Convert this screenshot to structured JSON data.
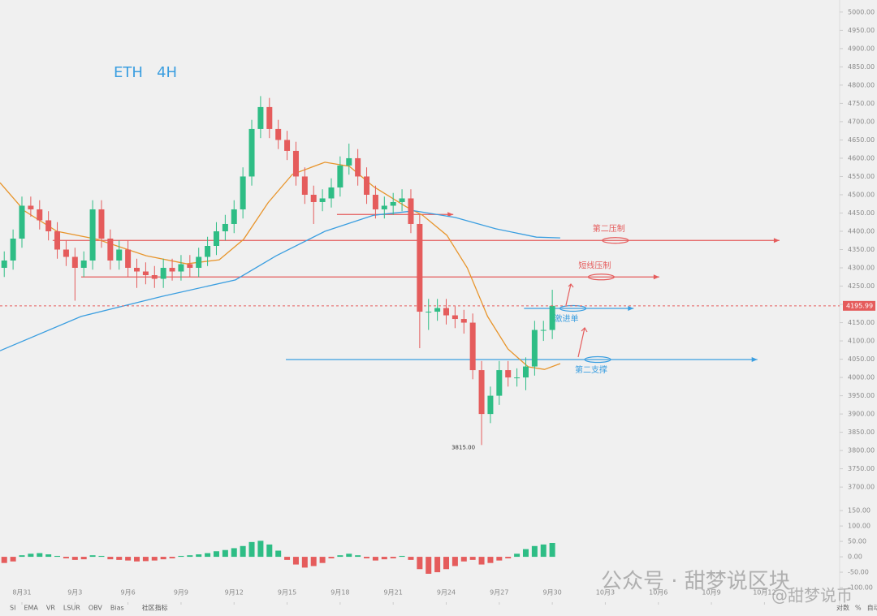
{
  "chart_data": {
    "type": "candlestick",
    "title": "ETH   4H",
    "x": [
      -1,
      -0.5,
      0,
      0.5,
      1,
      1.5,
      2,
      2.5,
      3,
      3.5,
      4,
      4.5,
      5,
      5.5,
      6,
      6.5,
      7,
      7.5,
      8,
      8.5,
      9,
      9.5,
      10,
      10.5,
      11,
      11.5,
      12,
      12.5,
      13,
      13.5,
      14,
      14.5,
      15,
      15.5,
      16,
      16.5,
      17,
      17.5,
      18,
      18.5,
      19,
      19.5,
      20,
      20.5,
      21,
      21.5,
      22,
      22.5,
      23,
      23.5,
      24,
      24.5,
      25,
      25.5,
      26,
      26.5,
      27,
      27.5,
      28,
      28.5,
      29,
      29.5,
      30
    ],
    "open": [
      4300,
      4320,
      4380,
      4470,
      4460,
      4430,
      4400,
      4350,
      4330,
      4300,
      4320,
      4460,
      4380,
      4320,
      4350,
      4300,
      4290,
      4280,
      4270,
      4300,
      4290,
      4310,
      4300,
      4330,
      4360,
      4400,
      4420,
      4460,
      4550,
      4680,
      4740,
      4680,
      4650,
      4620,
      4550,
      4500,
      4480,
      4490,
      4520,
      4580,
      4600,
      4550,
      4500,
      4460,
      4470,
      4480,
      4490,
      4420,
      4180,
      4180,
      4190,
      4170,
      4160,
      4150,
      4020,
      3900,
      3950,
      4020,
      4000,
      4000,
      4030,
      4130,
      4130
    ],
    "high": [
      4345,
      4405,
      4495,
      4495,
      4485,
      4455,
      4425,
      4375,
      4355,
      4345,
      4485,
      4485,
      4405,
      4375,
      4375,
      4325,
      4315,
      4305,
      4325,
      4325,
      4335,
      4335,
      4355,
      4385,
      4425,
      4445,
      4485,
      4575,
      4705,
      4770,
      4765,
      4705,
      4675,
      4645,
      4575,
      4525,
      4515,
      4545,
      4605,
      4640,
      4625,
      4575,
      4525,
      4495,
      4505,
      4515,
      4515,
      4445,
      4215,
      4215,
      4215,
      4195,
      4185,
      4175,
      4045,
      3975,
      4045,
      4045,
      4025,
      4055,
      4155,
      4155,
      4240
    ],
    "low": [
      4275,
      4295,
      4355,
      4440,
      4405,
      4375,
      4325,
      4305,
      4210,
      4275,
      4295,
      4355,
      4295,
      4295,
      4275,
      4245,
      4255,
      4245,
      4245,
      4265,
      4265,
      4275,
      4275,
      4305,
      4335,
      4375,
      4395,
      4435,
      4525,
      4655,
      4655,
      4625,
      4595,
      4525,
      4475,
      4420,
      4455,
      4465,
      4495,
      4555,
      4525,
      4475,
      4435,
      4435,
      4445,
      4455,
      4395,
      4080,
      4130,
      4155,
      4145,
      4135,
      4120,
      3995,
      3815,
      3875,
      3925,
      3975,
      3975,
      3965,
      4005,
      4100,
      4105
    ],
    "close": [
      4320,
      4380,
      4470,
      4460,
      4430,
      4400,
      4350,
      4330,
      4300,
      4320,
      4460,
      4380,
      4320,
      4350,
      4300,
      4290,
      4280,
      4270,
      4300,
      4290,
      4310,
      4300,
      4330,
      4360,
      4400,
      4420,
      4460,
      4550,
      4680,
      4740,
      4680,
      4650,
      4620,
      4550,
      4500,
      4480,
      4490,
      4520,
      4580,
      4600,
      4550,
      4500,
      4460,
      4470,
      4480,
      4490,
      4420,
      4180,
      4180,
      4190,
      4170,
      4160,
      4150,
      4020,
      3900,
      3950,
      4020,
      4000,
      4000,
      4030,
      4130,
      4130,
      4196
    ],
    "up_color": "#2ebd85",
    "down_color": "#e55c5c",
    "xlim": [
      -1.24,
      46.07
    ],
    "ylim": [
      3667,
      5033
    ],
    "xticks": [
      {
        "value": 0,
        "label": "8月31"
      },
      {
        "value": 3,
        "label": "9月3"
      },
      {
        "value": 6,
        "label": "9月6"
      },
      {
        "value": 9,
        "label": "9月9"
      },
      {
        "value": 12,
        "label": "9月12"
      },
      {
        "value": 15,
        "label": "9月15"
      },
      {
        "value": 18,
        "label": "9月18"
      },
      {
        "value": 21,
        "label": "9月21"
      },
      {
        "value": 24,
        "label": "9月24"
      },
      {
        "value": 27,
        "label": "9月27"
      },
      {
        "value": 30,
        "label": "9月30"
      },
      {
        "value": 33,
        "label": "10月3"
      },
      {
        "value": 36,
        "label": "10月6"
      },
      {
        "value": 39,
        "label": "10月9"
      },
      {
        "value": 42,
        "label": "10月12"
      }
    ],
    "yticks": [
      {
        "value": 5000,
        "label": "5000.00"
      },
      {
        "value": 4950,
        "label": "4950.00"
      },
      {
        "value": 4900,
        "label": "4900.00"
      },
      {
        "value": 4850,
        "label": "4850.00"
      },
      {
        "value": 4800,
        "label": "4800.00"
      },
      {
        "value": 4750,
        "label": "4750.00"
      },
      {
        "value": 4700,
        "label": "4700.00"
      },
      {
        "value": 4650,
        "label": "4650.00"
      },
      {
        "value": 4600,
        "label": "4600.00"
      },
      {
        "value": 4550,
        "label": "4550.00"
      },
      {
        "value": 4500,
        "label": "4500.00"
      },
      {
        "value": 4450,
        "label": "4450.00"
      },
      {
        "value": 4400,
        "label": "4400.00"
      },
      {
        "value": 4350,
        "label": "4350.00"
      },
      {
        "value": 4300,
        "label": "4300.00"
      },
      {
        "value": 4250,
        "label": "4250.00"
      },
      {
        "value": 4200,
        "label": "4200.00"
      },
      {
        "value": 4150,
        "label": "4150.00"
      },
      {
        "value": 4100,
        "label": "4100.00"
      },
      {
        "value": 4050,
        "label": "4050.00"
      },
      {
        "value": 4000,
        "label": "4000.00"
      },
      {
        "value": 3950,
        "label": "3950.00"
      },
      {
        "value": 3900,
        "label": "3900.00"
      },
      {
        "value": 3850,
        "label": "3850.00"
      },
      {
        "value": 3800,
        "label": "3800.00"
      },
      {
        "value": 3750,
        "label": "3750.00"
      },
      {
        "value": 3700,
        "label": "3700.00"
      }
    ],
    "moving_averages": [
      {
        "color": "#e8952c",
        "x": [
          -1.24,
          0.14,
          1.98,
          4.27,
          7.03,
          9.32,
          11.16,
          12.54,
          13.92,
          15.3,
          17.14,
          18.52,
          19.9,
          21.74,
          22.66,
          24.04,
          25.19,
          26.34,
          27.49,
          28.64,
          29.56,
          30.45
        ],
        "values": [
          4533,
          4456,
          4400,
          4378,
          4333,
          4311,
          4322,
          4378,
          4478,
          4556,
          4589,
          4578,
          4522,
          4467,
          4444,
          4389,
          4300,
          4167,
          4078,
          4029,
          4022,
          4038
        ]
      },
      {
        "color": "#3a9ee0",
        "x": [
          -1.24,
          3.35,
          7.94,
          12.08,
          14.38,
          17.14,
          19.9,
          22.2,
          24.5,
          26.8,
          29.1,
          30.45
        ],
        "values": [
          4073,
          4167,
          4222,
          4267,
          4333,
          4400,
          4444,
          4456,
          4438,
          4407,
          4384,
          4382
        ]
      }
    ],
    "levels": [
      {
        "price": 4375,
        "color": "#e55c5c",
        "from": 1.74,
        "to": 42.85,
        "label": "第二压制",
        "label_at": 33.2
      },
      {
        "price": 4275,
        "color": "#e55c5c",
        "from": 3.35,
        "to": 36.05,
        "label": "短线压制",
        "label_at": 32.4
      },
      {
        "price": 4446,
        "color": "#e55c5c",
        "from": 17.82,
        "to": 24.4
      },
      {
        "price": 4189,
        "color": "#3a9ee0",
        "from": 28.4,
        "to": 34.6,
        "label": "激进单",
        "label_at": 30.8
      },
      {
        "price": 4049,
        "color": "#3a9ee0",
        "from": 14.93,
        "to": 41.6,
        "label": "第二支撑",
        "label_at": 32.2
      }
    ],
    "last_price": {
      "value": 4195.99,
      "label": "4195.99"
    },
    "low_marker": {
      "x": 26,
      "value": 3815,
      "label": "3815.00"
    },
    "macd": {
      "values": [
        -20,
        -15,
        5,
        10,
        12,
        8,
        3,
        -5,
        -10,
        -8,
        5,
        3,
        -8,
        -10,
        -12,
        -15,
        -14,
        -12,
        -8,
        -5,
        3,
        5,
        8,
        12,
        18,
        22,
        28,
        35,
        48,
        52,
        40,
        20,
        -10,
        -25,
        -35,
        -30,
        -20,
        -5,
        5,
        10,
        5,
        -5,
        -12,
        -8,
        -5,
        3,
        -10,
        -40,
        -55,
        -50,
        -40,
        -30,
        -15,
        -10,
        -25,
        -20,
        -12,
        -5,
        10,
        25,
        35,
        40,
        45
      ],
      "ylim": [
        -142,
        174
      ],
      "yticks": [
        {
          "value": 150,
          "label": "150.00"
        },
        {
          "value": 100,
          "label": "100.00"
        },
        {
          "value": 50,
          "label": "50.00"
        },
        {
          "value": 0,
          "label": "0.00"
        },
        {
          "value": -50,
          "label": "-50.00"
        },
        {
          "value": -100,
          "label": "-100.00"
        }
      ]
    },
    "toolbar": [
      "SI",
      "EMA",
      "VR",
      "LSUR",
      "OBV",
      "Bias"
    ],
    "community_indicator": "社区指标",
    "axis_options": [
      "对数",
      "%",
      "自动"
    ],
    "watermark": "公众号 · 甜梦说区块",
    "watermark_handle": "@甜梦说币"
  }
}
